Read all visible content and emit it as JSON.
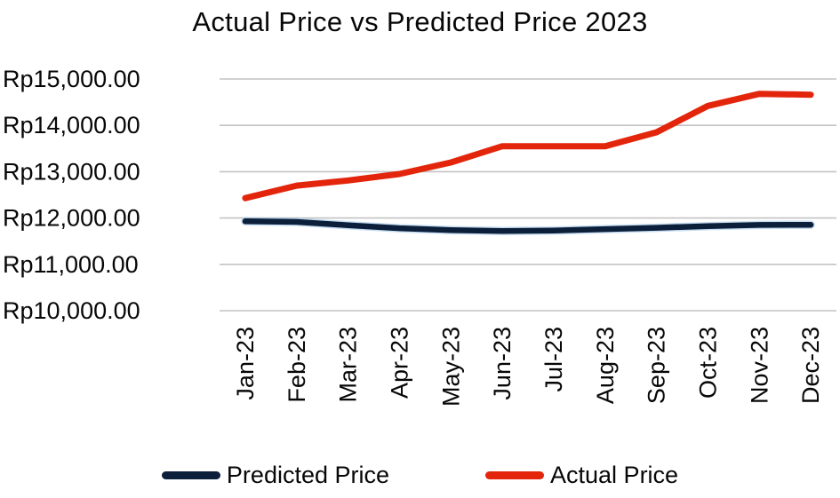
{
  "chart_data": {
    "type": "line",
    "title": "Actual Price vs Predicted Price 2023",
    "categories": [
      "Jan-23",
      "Feb-23",
      "Mar-23",
      "Apr-23",
      "May-23",
      "Jun-23",
      "Jul-23",
      "Aug-23",
      "Sep-23",
      "Oct-23",
      "Nov-23",
      "Dec-23"
    ],
    "series": [
      {
        "name": "Predicted Price",
        "color": "#0c1f3a",
        "halo_color": "#9dc3e6",
        "values": [
          11930,
          11915,
          11845,
          11780,
          11740,
          11720,
          11730,
          11760,
          11790,
          11825,
          11850,
          11855
        ]
      },
      {
        "name": "Actual Price",
        "color": "#e3250c",
        "halo_color": "",
        "values": [
          12430,
          12700,
          12810,
          12950,
          13200,
          13550,
          13550,
          13550,
          13850,
          14420,
          14680,
          14660
        ]
      }
    ],
    "xlabel": "",
    "ylabel": "",
    "y_axis": {
      "min": 10000,
      "max": 15000,
      "step": 1000,
      "tick_labels": [
        "Rp15,000.00",
        "Rp14,000.00",
        "Rp13,000.00",
        "Rp12,000.00",
        "Rp11,000.00",
        "Rp10,000.00"
      ]
    },
    "grid": "horizontal",
    "gridline_color": "#c3c3c3",
    "legend_position": "bottom",
    "x_tick_rotation_deg": -90
  }
}
